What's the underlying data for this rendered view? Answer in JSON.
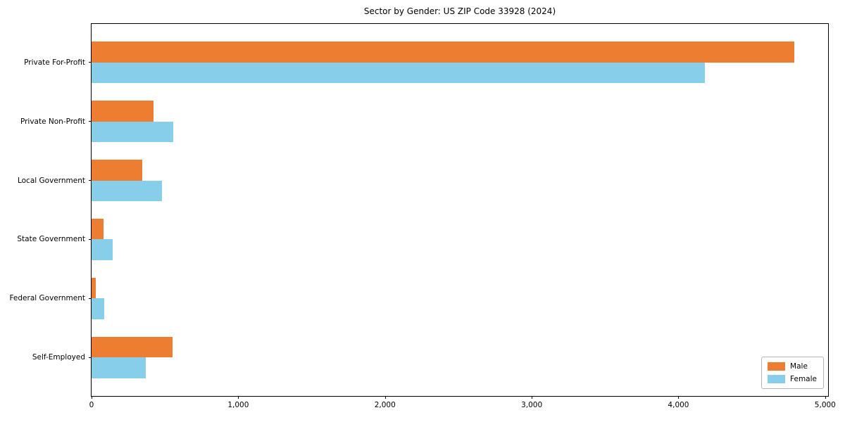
{
  "chart_data": {
    "type": "bar",
    "orientation": "horizontal",
    "title": "Sector by Gender: US ZIP Code 33928 (2024)",
    "categories": [
      "Private For-Profit",
      "Private Non-Profit",
      "Local Government",
      "State Government",
      "Federal Government",
      "Self-Employed"
    ],
    "series": [
      {
        "name": "Male",
        "color": "#ed7d31",
        "values": [
          4790,
          420,
          345,
          80,
          30,
          550
        ]
      },
      {
        "name": "Female",
        "color": "#87ceeb",
        "values": [
          4180,
          555,
          480,
          145,
          85,
          370
        ]
      }
    ],
    "xlabel": "",
    "ylabel": "",
    "xlim": [
      0,
      5020
    ],
    "xticks": [
      0,
      1000,
      2000,
      3000,
      4000,
      5000
    ],
    "xtick_labels": [
      "0",
      "1,000",
      "2,000",
      "3,000",
      "4,000",
      "5,000"
    ],
    "grid": false,
    "background": "#ffffff",
    "frame_color": "#000000",
    "legend": {
      "position": "lower right",
      "entries": [
        "Male",
        "Female"
      ]
    }
  }
}
